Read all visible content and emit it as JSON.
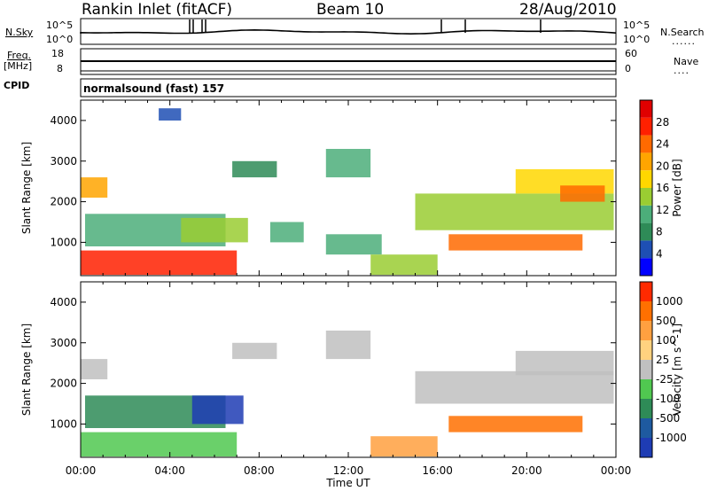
{
  "header": {
    "station": "Rankin Inlet (fitACF)",
    "beam": "Beam 10",
    "date": "28/Aug/2010"
  },
  "strip_panels": {
    "nsky": {
      "left_label": "N.Sky",
      "left_ticks": [
        "10^5",
        "10^0"
      ],
      "right_label": "N.Search",
      "right_ticks": [
        "10^5",
        "10^0"
      ]
    },
    "freq": {
      "left_label_1": "Freq.",
      "left_label_2": "[MHz]",
      "left_ticks": [
        "18",
        "8"
      ],
      "right_label": "Nave",
      "right_ticks": [
        "60",
        "0"
      ]
    },
    "cpid": {
      "label": "CPID",
      "value": "normalsound (fast) 157"
    }
  },
  "chart_data": [
    {
      "type": "heatmap",
      "panel": "power",
      "ylabel": "Slant Range [km]",
      "xlabel": "Time UT",
      "xlim": [
        "00:00",
        "24:00"
      ],
      "ylim": [
        180,
        4500
      ],
      "y_ticks": [
        1000,
        2000,
        3000,
        4000
      ],
      "x_ticks": [
        "00:00",
        "04:00",
        "08:00",
        "12:00",
        "16:00",
        "20:00",
        "00:00"
      ],
      "colorbar": {
        "label": "Power [dB]",
        "ticks": [
          "28",
          "24",
          "20",
          "16",
          "12",
          "8",
          "4"
        ],
        "colors": [
          "#0000ff",
          "#1e4fb4",
          "#2e8b57",
          "#4cae7a",
          "#9acd32",
          "#ffd700",
          "#ffa500",
          "#ff6a00",
          "#ff2000",
          "#e00000"
        ]
      },
      "regions": [
        {
          "t0": 0.0,
          "t1": 1.2,
          "r0": 2100,
          "r1": 2600,
          "level": 6
        },
        {
          "t0": 0.2,
          "t1": 6.5,
          "r0": 900,
          "r1": 1700,
          "level": 3
        },
        {
          "t0": 0.0,
          "t1": 7.0,
          "r0": 200,
          "r1": 800,
          "level": 8
        },
        {
          "t0": 4.5,
          "t1": 7.5,
          "r0": 1000,
          "r1": 1600,
          "level": 4
        },
        {
          "t0": 6.8,
          "t1": 8.8,
          "r0": 2600,
          "r1": 3000,
          "level": 2
        },
        {
          "t0": 8.5,
          "t1": 10.0,
          "r0": 1000,
          "r1": 1500,
          "level": 3
        },
        {
          "t0": 11.0,
          "t1": 13.0,
          "r0": 2600,
          "r1": 3300,
          "level": 3
        },
        {
          "t0": 11.0,
          "t1": 13.5,
          "r0": 700,
          "r1": 1200,
          "level": 3
        },
        {
          "t0": 13.0,
          "t1": 16.0,
          "r0": 200,
          "r1": 700,
          "level": 4
        },
        {
          "t0": 15.0,
          "t1": 23.9,
          "r0": 1300,
          "r1": 2200,
          "level": 4
        },
        {
          "t0": 16.5,
          "t1": 22.5,
          "r0": 800,
          "r1": 1200,
          "level": 7
        },
        {
          "t0": 19.5,
          "t1": 23.9,
          "r0": 2200,
          "r1": 2800,
          "level": 5
        },
        {
          "t0": 21.5,
          "t1": 23.5,
          "r0": 2000,
          "r1": 2400,
          "level": 7
        },
        {
          "t0": 3.5,
          "t1": 4.5,
          "r0": 4000,
          "r1": 4300,
          "level": 1
        }
      ]
    },
    {
      "type": "heatmap",
      "panel": "velocity",
      "ylabel": "Slant Range [km]",
      "xlabel": "Time UT",
      "xlim": [
        "00:00",
        "24:00"
      ],
      "ylim": [
        180,
        4500
      ],
      "y_ticks": [
        1000,
        2000,
        3000,
        4000
      ],
      "x_ticks": [
        "00:00",
        "04:00",
        "08:00",
        "12:00",
        "16:00",
        "20:00",
        "00:00"
      ],
      "colorbar": {
        "label": "Velocity [m s^-1]",
        "ticks": [
          "1000",
          "500",
          "100",
          "25",
          "-25",
          "-100",
          "-500",
          "-1000"
        ],
        "colors": [
          "#1e3cb4",
          "#1e5aa0",
          "#2e8b57",
          "#50c850",
          "#c0c0c0",
          "#ffd27f",
          "#ffa040",
          "#ff7000",
          "#ff2a00"
        ]
      },
      "regions": [
        {
          "t0": 0.0,
          "t1": 1.2,
          "r0": 2100,
          "r1": 2600,
          "level": 4
        },
        {
          "t0": 0.2,
          "t1": 6.5,
          "r0": 900,
          "r1": 1700,
          "level": 2
        },
        {
          "t0": 0.0,
          "t1": 7.0,
          "r0": 200,
          "r1": 800,
          "level": 3
        },
        {
          "t0": 5.0,
          "t1": 7.3,
          "r0": 1000,
          "r1": 1700,
          "level": 0
        },
        {
          "t0": 6.8,
          "t1": 8.8,
          "r0": 2600,
          "r1": 3000,
          "level": 4
        },
        {
          "t0": 11.0,
          "t1": 13.0,
          "r0": 2600,
          "r1": 3300,
          "level": 4
        },
        {
          "t0": 13.0,
          "t1": 16.0,
          "r0": 200,
          "r1": 700,
          "level": 6
        },
        {
          "t0": 15.0,
          "t1": 23.9,
          "r0": 1500,
          "r1": 2300,
          "level": 4
        },
        {
          "t0": 16.5,
          "t1": 22.5,
          "r0": 800,
          "r1": 1200,
          "level": 7
        },
        {
          "t0": 19.5,
          "t1": 23.9,
          "r0": 2200,
          "r1": 2800,
          "level": 4
        }
      ]
    }
  ]
}
